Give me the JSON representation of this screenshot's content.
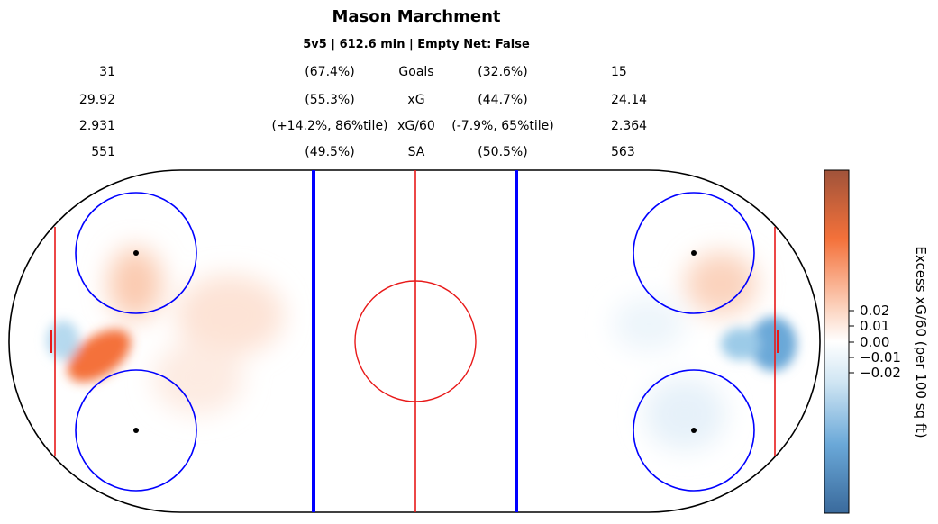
{
  "title": "Mason Marchment",
  "subtitle": "5v5 | 612.6 min | Empty Net: False",
  "stats": [
    {
      "left_value": "31",
      "left_pct": "(67.4%)",
      "name": "Goals",
      "right_pct": "(32.6%)",
      "right_value": "15"
    },
    {
      "left_value": "29.92",
      "left_pct": "(55.3%)",
      "name": "xG",
      "right_pct": "(44.7%)",
      "right_value": "24.14"
    },
    {
      "left_value": "2.931",
      "left_pct": "(+14.2%, 86%tile)",
      "name": "xG/60",
      "right_pct": "(-7.9%, 65%tile)",
      "right_value": "2.364"
    },
    {
      "left_value": "551",
      "left_pct": "(49.5%)",
      "name": "SA",
      "right_pct": "(50.5%)",
      "right_value": "563"
    }
  ],
  "colorbar": {
    "label": "Excess xG/60 (per 100 sq ft)",
    "ticks": [
      "0.02",
      "0.01",
      "0.00",
      "−0.01",
      "−0.02"
    ],
    "colors": {
      "high": "#a0533a",
      "mid_high": "#f4713a",
      "zero": "#ffffff",
      "mid_low": "#9ccbe8",
      "low": "#3a6a9c"
    }
  },
  "chart_data": {
    "type": "heatmap",
    "title": "Mason Marchment",
    "subtitle": "5v5 | 612.6 min | Empty Net: False",
    "colorbar_label": "Excess xG/60 (per 100 sq ft)",
    "colorbar_ticks": [
      0.02,
      0.01,
      0.0,
      -0.01,
      -0.02
    ],
    "hotspots": [
      {
        "zone": "left net front / slot",
        "sign": "positive",
        "intensity": "strong"
      },
      {
        "zone": "left crease",
        "sign": "negative",
        "intensity": "light"
      },
      {
        "zone": "left upper faceoff circle",
        "sign": "positive",
        "intensity": "light"
      },
      {
        "zone": "left high slot",
        "sign": "positive",
        "intensity": "faint"
      },
      {
        "zone": "right crease",
        "sign": "negative",
        "intensity": "moderate"
      },
      {
        "zone": "right upper faceoff area",
        "sign": "positive",
        "intensity": "light"
      },
      {
        "zone": "right lower faceoff circle",
        "sign": "negative",
        "intensity": "faint"
      }
    ]
  }
}
